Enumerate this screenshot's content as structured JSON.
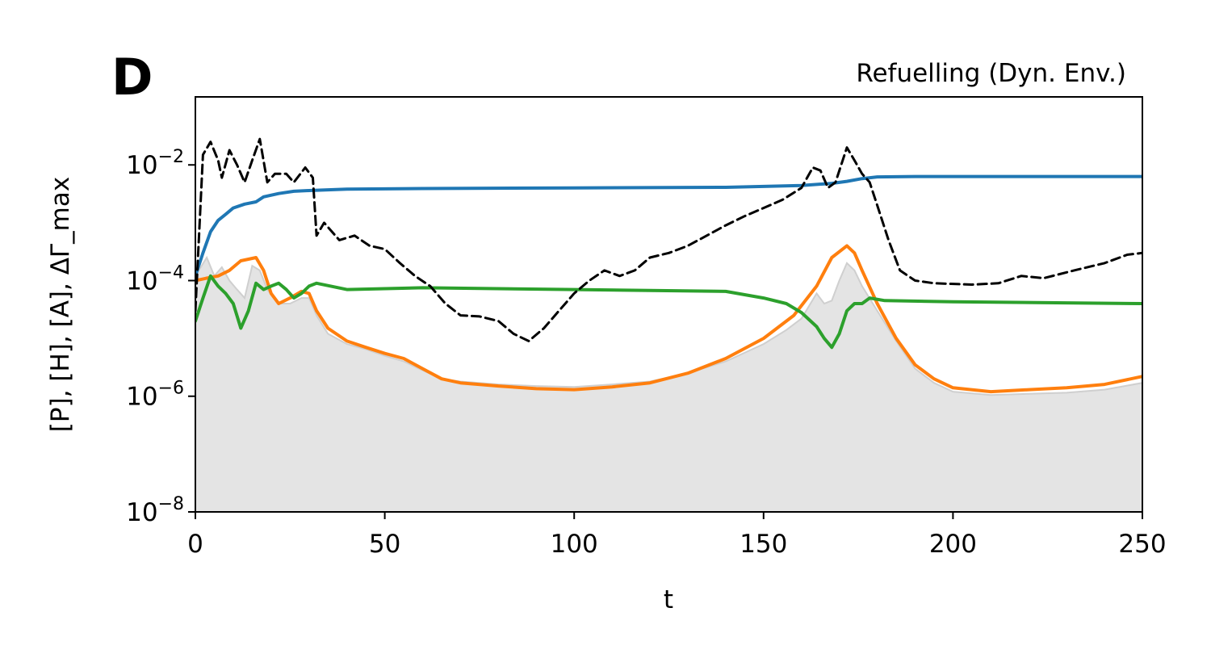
{
  "chart_data": {
    "type": "line",
    "panel_letter": "D",
    "title": "Refuelling (Dyn. Env.)",
    "xlabel": "t",
    "ylabel": "[P], [H], [A], ΔΓ_max",
    "xlim": [
      0,
      250
    ],
    "ylim": [
      1e-08,
      0.15
    ],
    "yscale": "log",
    "grid": false,
    "legend": "none",
    "x_ticks": [
      0,
      50,
      100,
      150,
      200,
      250
    ],
    "x_tick_labels": [
      "0",
      "50",
      "100",
      "150",
      "200",
      "250"
    ],
    "y_ticks": [
      {
        "value": 1e-08,
        "base": "10",
        "exp": "−8"
      },
      {
        "value": 1e-06,
        "base": "10",
        "exp": "−6"
      },
      {
        "value": 0.0001,
        "base": "10",
        "exp": "−4"
      },
      {
        "value": 0.01,
        "base": "10",
        "exp": "−2"
      }
    ],
    "series": [
      {
        "color": "#1f77b4",
        "style": "solid",
        "points": [
          [
            0,
            0.00012
          ],
          [
            2,
            0.0003
          ],
          [
            4,
            0.0007
          ],
          [
            6,
            0.0011
          ],
          [
            8,
            0.0014
          ],
          [
            10,
            0.0018
          ],
          [
            13,
            0.0021
          ],
          [
            16,
            0.0023
          ],
          [
            18,
            0.0028
          ],
          [
            22,
            0.0032
          ],
          [
            26,
            0.0035
          ],
          [
            30,
            0.0036
          ],
          [
            40,
            0.0038
          ],
          [
            60,
            0.0039
          ],
          [
            100,
            0.004
          ],
          [
            140,
            0.0041
          ],
          [
            160,
            0.0044
          ],
          [
            168,
            0.0048
          ],
          [
            172,
            0.0052
          ],
          [
            176,
            0.0058
          ],
          [
            180,
            0.0062
          ],
          [
            190,
            0.0063
          ],
          [
            220,
            0.0063
          ],
          [
            250,
            0.0063
          ]
        ]
      },
      {
        "color": "#ff7f0e",
        "style": "solid",
        "points": [
          [
            0,
            0.0001
          ],
          [
            3,
            0.00011
          ],
          [
            6,
            0.00012
          ],
          [
            9,
            0.00015
          ],
          [
            12,
            0.00022
          ],
          [
            16,
            0.00025
          ],
          [
            18,
            0.00015
          ],
          [
            20,
            6e-05
          ],
          [
            22,
            4e-05
          ],
          [
            25,
            5e-05
          ],
          [
            28,
            6.5e-05
          ],
          [
            30,
            6e-05
          ],
          [
            32,
            3e-05
          ],
          [
            35,
            1.5e-05
          ],
          [
            40,
            9e-06
          ],
          [
            45,
            7e-06
          ],
          [
            50,
            5.5e-06
          ],
          [
            55,
            4.5e-06
          ],
          [
            60,
            3e-06
          ],
          [
            65,
            2e-06
          ],
          [
            70,
            1.7e-06
          ],
          [
            80,
            1.5e-06
          ],
          [
            90,
            1.35e-06
          ],
          [
            100,
            1.3e-06
          ],
          [
            110,
            1.45e-06
          ],
          [
            120,
            1.7e-06
          ],
          [
            130,
            2.5e-06
          ],
          [
            140,
            4.5e-06
          ],
          [
            150,
            1e-05
          ],
          [
            158,
            2.5e-05
          ],
          [
            164,
            8e-05
          ],
          [
            168,
            0.00025
          ],
          [
            172,
            0.0004
          ],
          [
            174,
            0.0003
          ],
          [
            176,
            0.00015
          ],
          [
            180,
            4e-05
          ],
          [
            185,
            1e-05
          ],
          [
            190,
            3.5e-06
          ],
          [
            195,
            2e-06
          ],
          [
            200,
            1.4e-06
          ],
          [
            210,
            1.2e-06
          ],
          [
            220,
            1.3e-06
          ],
          [
            230,
            1.4e-06
          ],
          [
            240,
            1.6e-06
          ],
          [
            250,
            2.2e-06
          ]
        ]
      },
      {
        "color": "#2ca02c",
        "style": "solid",
        "points": [
          [
            0,
            2e-05
          ],
          [
            2,
            5e-05
          ],
          [
            4,
            0.00012
          ],
          [
            6,
            8e-05
          ],
          [
            8,
            6e-05
          ],
          [
            10,
            4e-05
          ],
          [
            12,
            1.5e-05
          ],
          [
            14,
            3e-05
          ],
          [
            16,
            9e-05
          ],
          [
            18,
            7e-05
          ],
          [
            20,
            8e-05
          ],
          [
            22,
            9e-05
          ],
          [
            24,
            7e-05
          ],
          [
            26,
            5e-05
          ],
          [
            28,
            6e-05
          ],
          [
            30,
            8e-05
          ],
          [
            32,
            9e-05
          ],
          [
            40,
            7e-05
          ],
          [
            60,
            7.5e-05
          ],
          [
            100,
            7e-05
          ],
          [
            140,
            6.5e-05
          ],
          [
            150,
            5e-05
          ],
          [
            156,
            4e-05
          ],
          [
            160,
            2.8e-05
          ],
          [
            164,
            1.6e-05
          ],
          [
            166,
            1e-05
          ],
          [
            168,
            7e-06
          ],
          [
            170,
            1.2e-05
          ],
          [
            172,
            3e-05
          ],
          [
            174,
            4e-05
          ],
          [
            176,
            4e-05
          ],
          [
            178,
            5e-05
          ],
          [
            182,
            4.5e-05
          ],
          [
            200,
            4.3e-05
          ],
          [
            250,
            4e-05
          ]
        ]
      },
      {
        "color": "#000000",
        "style": "dashed",
        "points": [
          [
            0,
            3e-05
          ],
          [
            2,
            0.015
          ],
          [
            4,
            0.025
          ],
          [
            6,
            0.012
          ],
          [
            7,
            0.006
          ],
          [
            9,
            0.018
          ],
          [
            11,
            0.01
          ],
          [
            13,
            0.005
          ],
          [
            15,
            0.012
          ],
          [
            17,
            0.028
          ],
          [
            19,
            0.005
          ],
          [
            21,
            0.007
          ],
          [
            24,
            0.007
          ],
          [
            26,
            0.005
          ],
          [
            29,
            0.009
          ],
          [
            31,
            0.006
          ],
          [
            32,
            0.0006
          ],
          [
            34,
            0.001
          ],
          [
            38,
            0.0005
          ],
          [
            42,
            0.0006
          ],
          [
            46,
            0.0004
          ],
          [
            50,
            0.00035
          ],
          [
            54,
            0.0002
          ],
          [
            58,
            0.00012
          ],
          [
            62,
            8e-05
          ],
          [
            66,
            4e-05
          ],
          [
            70,
            2.5e-05
          ],
          [
            75,
            2.4e-05
          ],
          [
            80,
            2e-05
          ],
          [
            84,
            1.2e-05
          ],
          [
            88,
            9e-06
          ],
          [
            92,
            1.5e-05
          ],
          [
            96,
            3e-05
          ],
          [
            100,
            6e-05
          ],
          [
            104,
            0.0001
          ],
          [
            108,
            0.00015
          ],
          [
            112,
            0.00012
          ],
          [
            116,
            0.00015
          ],
          [
            120,
            0.00025
          ],
          [
            125,
            0.0003
          ],
          [
            130,
            0.0004
          ],
          [
            135,
            0.0006
          ],
          [
            140,
            0.0009
          ],
          [
            145,
            0.0013
          ],
          [
            150,
            0.0018
          ],
          [
            155,
            0.0025
          ],
          [
            160,
            0.004
          ],
          [
            163,
            0.009
          ],
          [
            165,
            0.008
          ],
          [
            167,
            0.004
          ],
          [
            169,
            0.005
          ],
          [
            172,
            0.02
          ],
          [
            174,
            0.012
          ],
          [
            176,
            0.007
          ],
          [
            178,
            0.005
          ],
          [
            180,
            0.002
          ],
          [
            183,
            0.0005
          ],
          [
            186,
            0.00015
          ],
          [
            190,
            0.0001
          ],
          [
            195,
            9e-05
          ],
          [
            205,
            8.5e-05
          ],
          [
            212,
            9e-05
          ],
          [
            218,
            0.00012
          ],
          [
            224,
            0.00011
          ],
          [
            232,
            0.00015
          ],
          [
            240,
            0.0002
          ],
          [
            246,
            0.00028
          ],
          [
            250,
            0.0003
          ]
        ]
      }
    ],
    "filled_area": {
      "color": "#e4e4e4",
      "edge_color": "#cfcfcf",
      "points": [
        [
          0,
          0.00012
        ],
        [
          3,
          0.00025
        ],
        [
          5,
          0.00012
        ],
        [
          7,
          0.00017
        ],
        [
          9,
          0.0001
        ],
        [
          11,
          7e-05
        ],
        [
          13,
          5e-05
        ],
        [
          15,
          0.00018
        ],
        [
          17,
          0.00015
        ],
        [
          19,
          7e-05
        ],
        [
          22,
          4e-05
        ],
        [
          25,
          4e-05
        ],
        [
          28,
          5e-05
        ],
        [
          30,
          5e-05
        ],
        [
          32,
          2.5e-05
        ],
        [
          35,
          1.2e-05
        ],
        [
          40,
          8e-06
        ],
        [
          45,
          6.5e-06
        ],
        [
          50,
          5e-06
        ],
        [
          55,
          4e-06
        ],
        [
          60,
          2.8e-06
        ],
        [
          65,
          2e-06
        ],
        [
          70,
          1.8e-06
        ],
        [
          80,
          1.6e-06
        ],
        [
          90,
          1.5e-06
        ],
        [
          100,
          1.45e-06
        ],
        [
          110,
          1.6e-06
        ],
        [
          120,
          1.8e-06
        ],
        [
          130,
          2.5e-06
        ],
        [
          140,
          4e-06
        ],
        [
          150,
          8e-06
        ],
        [
          156,
          1.4e-05
        ],
        [
          160,
          2.2e-05
        ],
        [
          164,
          6e-05
        ],
        [
          166,
          4e-05
        ],
        [
          168,
          4.5e-05
        ],
        [
          170,
          0.0001
        ],
        [
          172,
          0.0002
        ],
        [
          174,
          0.00015
        ],
        [
          176,
          8e-05
        ],
        [
          180,
          3e-05
        ],
        [
          185,
          9e-06
        ],
        [
          190,
          3e-06
        ],
        [
          195,
          1.7e-06
        ],
        [
          200,
          1.2e-06
        ],
        [
          210,
          1.05e-06
        ],
        [
          220,
          1.1e-06
        ],
        [
          230,
          1.15e-06
        ],
        [
          240,
          1.3e-06
        ],
        [
          250,
          1.7e-06
        ]
      ]
    }
  }
}
